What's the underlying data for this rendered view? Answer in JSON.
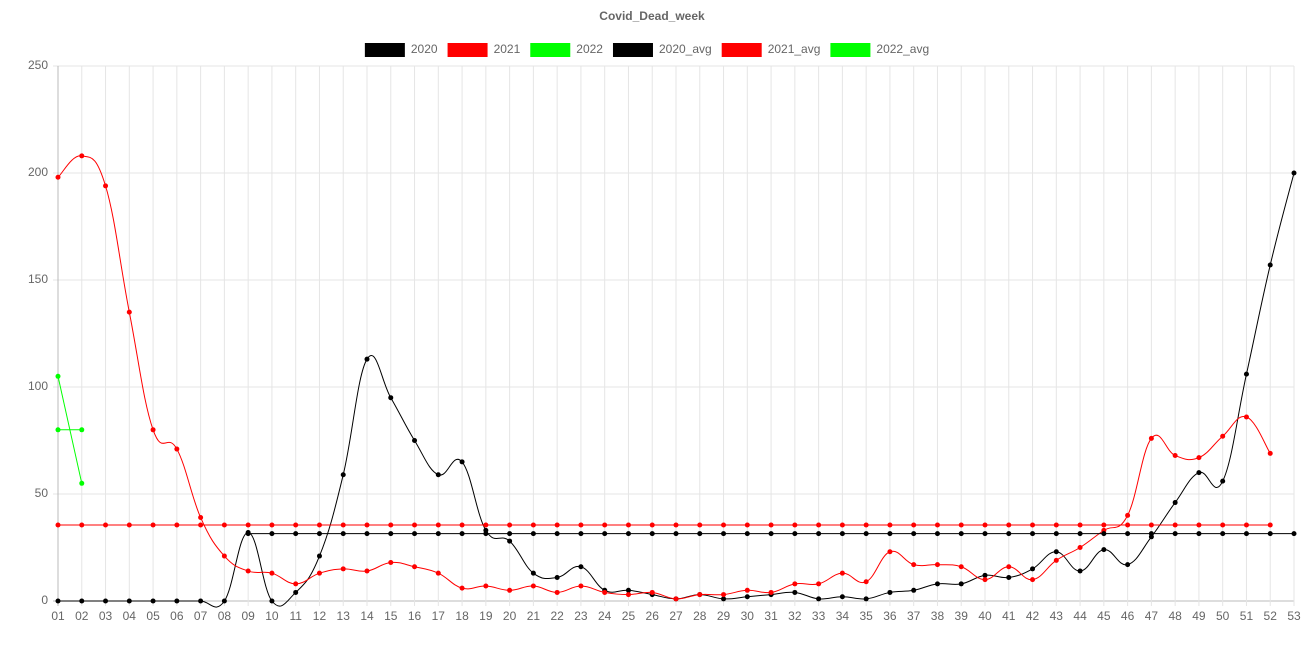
{
  "chart_data": {
    "type": "line",
    "title": "Covid_Dead_week",
    "categories": [
      "01",
      "02",
      "03",
      "04",
      "05",
      "06",
      "07",
      "08",
      "09",
      "10",
      "11",
      "12",
      "13",
      "14",
      "15",
      "16",
      "17",
      "18",
      "19",
      "20",
      "21",
      "22",
      "23",
      "24",
      "25",
      "26",
      "27",
      "28",
      "29",
      "30",
      "31",
      "32",
      "33",
      "34",
      "35",
      "36",
      "37",
      "38",
      "39",
      "40",
      "41",
      "42",
      "43",
      "44",
      "45",
      "46",
      "47",
      "48",
      "49",
      "50",
      "51",
      "52",
      "53"
    ],
    "series": [
      {
        "name": "2020",
        "color": "#000000",
        "values": [
          0,
          0,
          0,
          0,
          0,
          0,
          0,
          0,
          32,
          0,
          4,
          21,
          59,
          113,
          95,
          75,
          59,
          65,
          33,
          28,
          13,
          11,
          16,
          5,
          5,
          3,
          1,
          3,
          1,
          2,
          3,
          4,
          1,
          2,
          1,
          4,
          5,
          8,
          8,
          12,
          11,
          15,
          23,
          14,
          24,
          17,
          30,
          46,
          60,
          56,
          106,
          157,
          200
        ]
      },
      {
        "name": "2021",
        "color": "#ff0000",
        "values": [
          198,
          208,
          194,
          135,
          80,
          71,
          39,
          21,
          14,
          13,
          8,
          13,
          15,
          14,
          18,
          16,
          13,
          6,
          7,
          5,
          7,
          4,
          7,
          4,
          3,
          4,
          1,
          3,
          3,
          5,
          4,
          8,
          8,
          13,
          9,
          23,
          17,
          17,
          16,
          10,
          16,
          10,
          19,
          25,
          33,
          40,
          76,
          68,
          67,
          77,
          86,
          69,
          null
        ]
      },
      {
        "name": "2022",
        "color": "#00ff00",
        "values": [
          105,
          55,
          null,
          null,
          null,
          null,
          null,
          null,
          null,
          null,
          null,
          null,
          null,
          null,
          null,
          null,
          null,
          null,
          null,
          null,
          null,
          null,
          null,
          null,
          null,
          null,
          null,
          null,
          null,
          null,
          null,
          null,
          null,
          null,
          null,
          null,
          null,
          null,
          null,
          null,
          null,
          null,
          null,
          null,
          null,
          null,
          null,
          null,
          null,
          null,
          null,
          null,
          null
        ]
      },
      {
        "name": "2020_avg",
        "color": "#000000",
        "values": [
          null,
          null,
          null,
          null,
          null,
          null,
          null,
          null,
          31.5,
          31.5,
          31.5,
          31.5,
          31.5,
          31.5,
          31.5,
          31.5,
          31.5,
          31.5,
          31.5,
          31.5,
          31.5,
          31.5,
          31.5,
          31.5,
          31.5,
          31.5,
          31.5,
          31.5,
          31.5,
          31.5,
          31.5,
          31.5,
          31.5,
          31.5,
          31.5,
          31.5,
          31.5,
          31.5,
          31.5,
          31.5,
          31.5,
          31.5,
          31.5,
          31.5,
          31.5,
          31.5,
          31.5,
          31.5,
          31.5,
          31.5,
          31.5,
          31.5,
          31.5
        ]
      },
      {
        "name": "2021_avg",
        "color": "#ff0000",
        "values": [
          35.5,
          35.5,
          35.5,
          35.5,
          35.5,
          35.5,
          35.5,
          35.5,
          35.5,
          35.5,
          35.5,
          35.5,
          35.5,
          35.5,
          35.5,
          35.5,
          35.5,
          35.5,
          35.5,
          35.5,
          35.5,
          35.5,
          35.5,
          35.5,
          35.5,
          35.5,
          35.5,
          35.5,
          35.5,
          35.5,
          35.5,
          35.5,
          35.5,
          35.5,
          35.5,
          35.5,
          35.5,
          35.5,
          35.5,
          35.5,
          35.5,
          35.5,
          35.5,
          35.5,
          35.5,
          35.5,
          35.5,
          35.5,
          35.5,
          35.5,
          35.5,
          35.5,
          null
        ]
      },
      {
        "name": "2022_avg",
        "color": "#00ff00",
        "values": [
          80,
          80,
          null,
          null,
          null,
          null,
          null,
          null,
          null,
          null,
          null,
          null,
          null,
          null,
          null,
          null,
          null,
          null,
          null,
          null,
          null,
          null,
          null,
          null,
          null,
          null,
          null,
          null,
          null,
          null,
          null,
          null,
          null,
          null,
          null,
          null,
          null,
          null,
          null,
          null,
          null,
          null,
          null,
          null,
          null,
          null,
          null,
          null,
          null,
          null,
          null,
          null,
          null
        ]
      }
    ],
    "ylim": [
      0,
      250
    ],
    "yticks": [
      0,
      50,
      100,
      150,
      200,
      250
    ],
    "grid": true,
    "legend": "top"
  }
}
